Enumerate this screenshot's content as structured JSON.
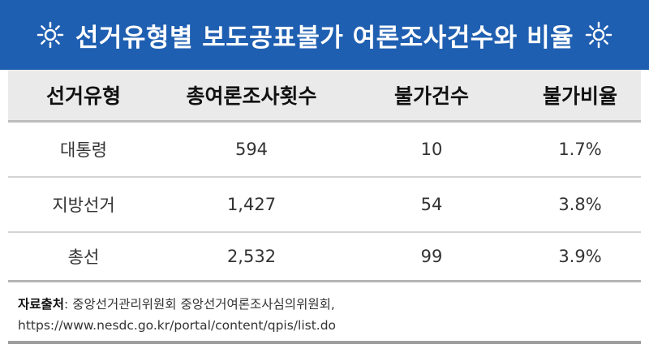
{
  "title": "선거유형별 보도공표불가 여론조사건수와 비율",
  "title_icon": "sun-icon",
  "colors": {
    "title_background": "#1f5fb1",
    "title_text": "#ffffff",
    "header_background": "#eaeaea"
  },
  "table": {
    "headers": [
      "선거유형",
      "총여론조사횟수",
      "불가건수",
      "불가비율"
    ],
    "rows": [
      [
        "대통령",
        "594",
        "10",
        "1.7%"
      ],
      [
        "지방선거",
        "1,427",
        "54",
        "3.8%"
      ],
      [
        "총선",
        "2,532",
        "99",
        "3.9%"
      ]
    ]
  },
  "source": {
    "label": "자료출처",
    "text": ": 중앙선거관리위원회 중앙선거여론조사심의위원회,",
    "url": "https://www.nesdc.go.kr/portal/content/qpis/list.do"
  }
}
